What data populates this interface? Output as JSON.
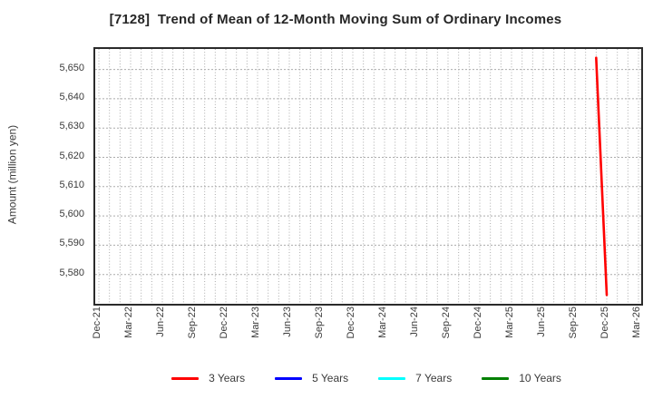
{
  "chart_data": {
    "type": "line",
    "title": "[7128]  Trend of Mean of 12-Month Moving Sum of Ordinary Incomes",
    "ylabel": "Amount (million yen)",
    "ylim": [
      5570,
      5657
    ],
    "y_ticks": [
      {
        "value": 5580,
        "label": "5,580"
      },
      {
        "value": 5590,
        "label": "5,590"
      },
      {
        "value": 5600,
        "label": "5,600"
      },
      {
        "value": 5610,
        "label": "5,610"
      },
      {
        "value": 5620,
        "label": "5,620"
      },
      {
        "value": 5630,
        "label": "5,630"
      },
      {
        "value": 5640,
        "label": "5,640"
      },
      {
        "value": 5650,
        "label": "5,650"
      }
    ],
    "x_ticks": [
      "Dec-21",
      "Mar-22",
      "Jun-22",
      "Sep-22",
      "Dec-22",
      "Mar-23",
      "Jun-23",
      "Sep-23",
      "Dec-23",
      "Mar-24",
      "Jun-24",
      "Sep-24",
      "Dec-24",
      "Mar-25",
      "Jun-25",
      "Sep-25",
      "Dec-25",
      "Mar-26"
    ],
    "x_tick_every_months": 3,
    "x_total_months": 51,
    "grid": "dotted",
    "legend_position": "bottom",
    "series": [
      {
        "name": "3 Years",
        "color": "#ff0000",
        "points": [
          {
            "month": "Nov-25",
            "month_index": 47,
            "value": 5654
          },
          {
            "month": "Dec-25",
            "month_index": 48,
            "value": 5573
          }
        ]
      },
      {
        "name": "5 Years",
        "color": "#0000ff",
        "points": []
      },
      {
        "name": "7 Years",
        "color": "#00ffff",
        "points": []
      },
      {
        "name": "10 Years",
        "color": "#008000",
        "points": []
      }
    ]
  },
  "colors": {
    "background": "#ffffff",
    "axis_border": "#2b2b2b",
    "grid": "#ababab",
    "tick_text": "#3a3a3a",
    "title_text": "#262626"
  }
}
